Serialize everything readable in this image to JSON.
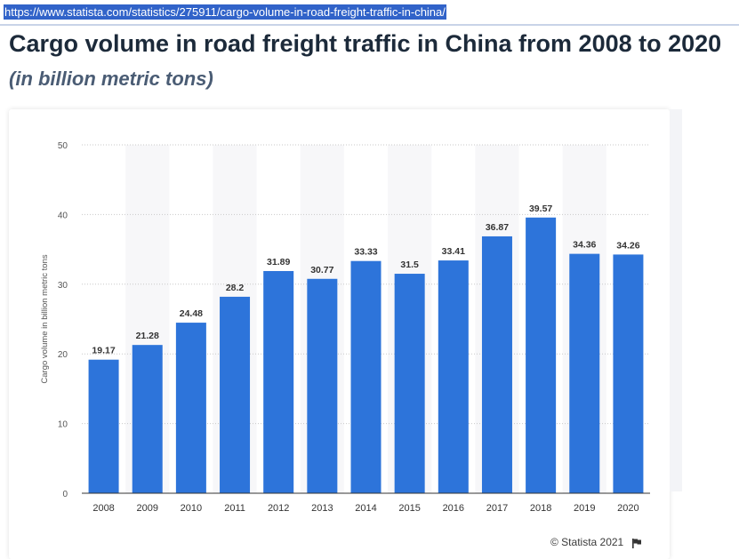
{
  "source_url": "https://www.statista.com/statistics/275911/cargo-volume-in-road-freight-traffic-in-china/",
  "title": "Cargo volume in road freight traffic in China from 2008 to 2020",
  "subtitle": "(in billion metric tons)",
  "credit": "© Statista 2021",
  "colors": {
    "bar": "#2d74da",
    "band": "#f7f7f9",
    "grid": "#c9c9c9",
    "axis": "#333333",
    "text": "#333333"
  },
  "chart_data": {
    "type": "bar",
    "categories": [
      "2008",
      "2009",
      "2010",
      "2011",
      "2012",
      "2013",
      "2014",
      "2015",
      "2016",
      "2017",
      "2018",
      "2019",
      "2020"
    ],
    "values": [
      19.17,
      21.28,
      24.48,
      28.2,
      31.89,
      30.77,
      33.33,
      31.5,
      33.41,
      36.87,
      39.57,
      34.36,
      34.26
    ],
    "value_labels": [
      "19.17",
      "21.28",
      "24.48",
      "28.2",
      "31.89",
      "30.77",
      "33.33",
      "31.5",
      "33.41",
      "36.87",
      "39.57",
      "34.36",
      "34.26"
    ],
    "ylabel": "Cargo volume in billion metric tons",
    "xlabel": "",
    "ylim": [
      0,
      50
    ],
    "yticks": [
      "0",
      "10",
      "20",
      "30",
      "40",
      "50"
    ],
    "grid": true,
    "legend": "none"
  }
}
